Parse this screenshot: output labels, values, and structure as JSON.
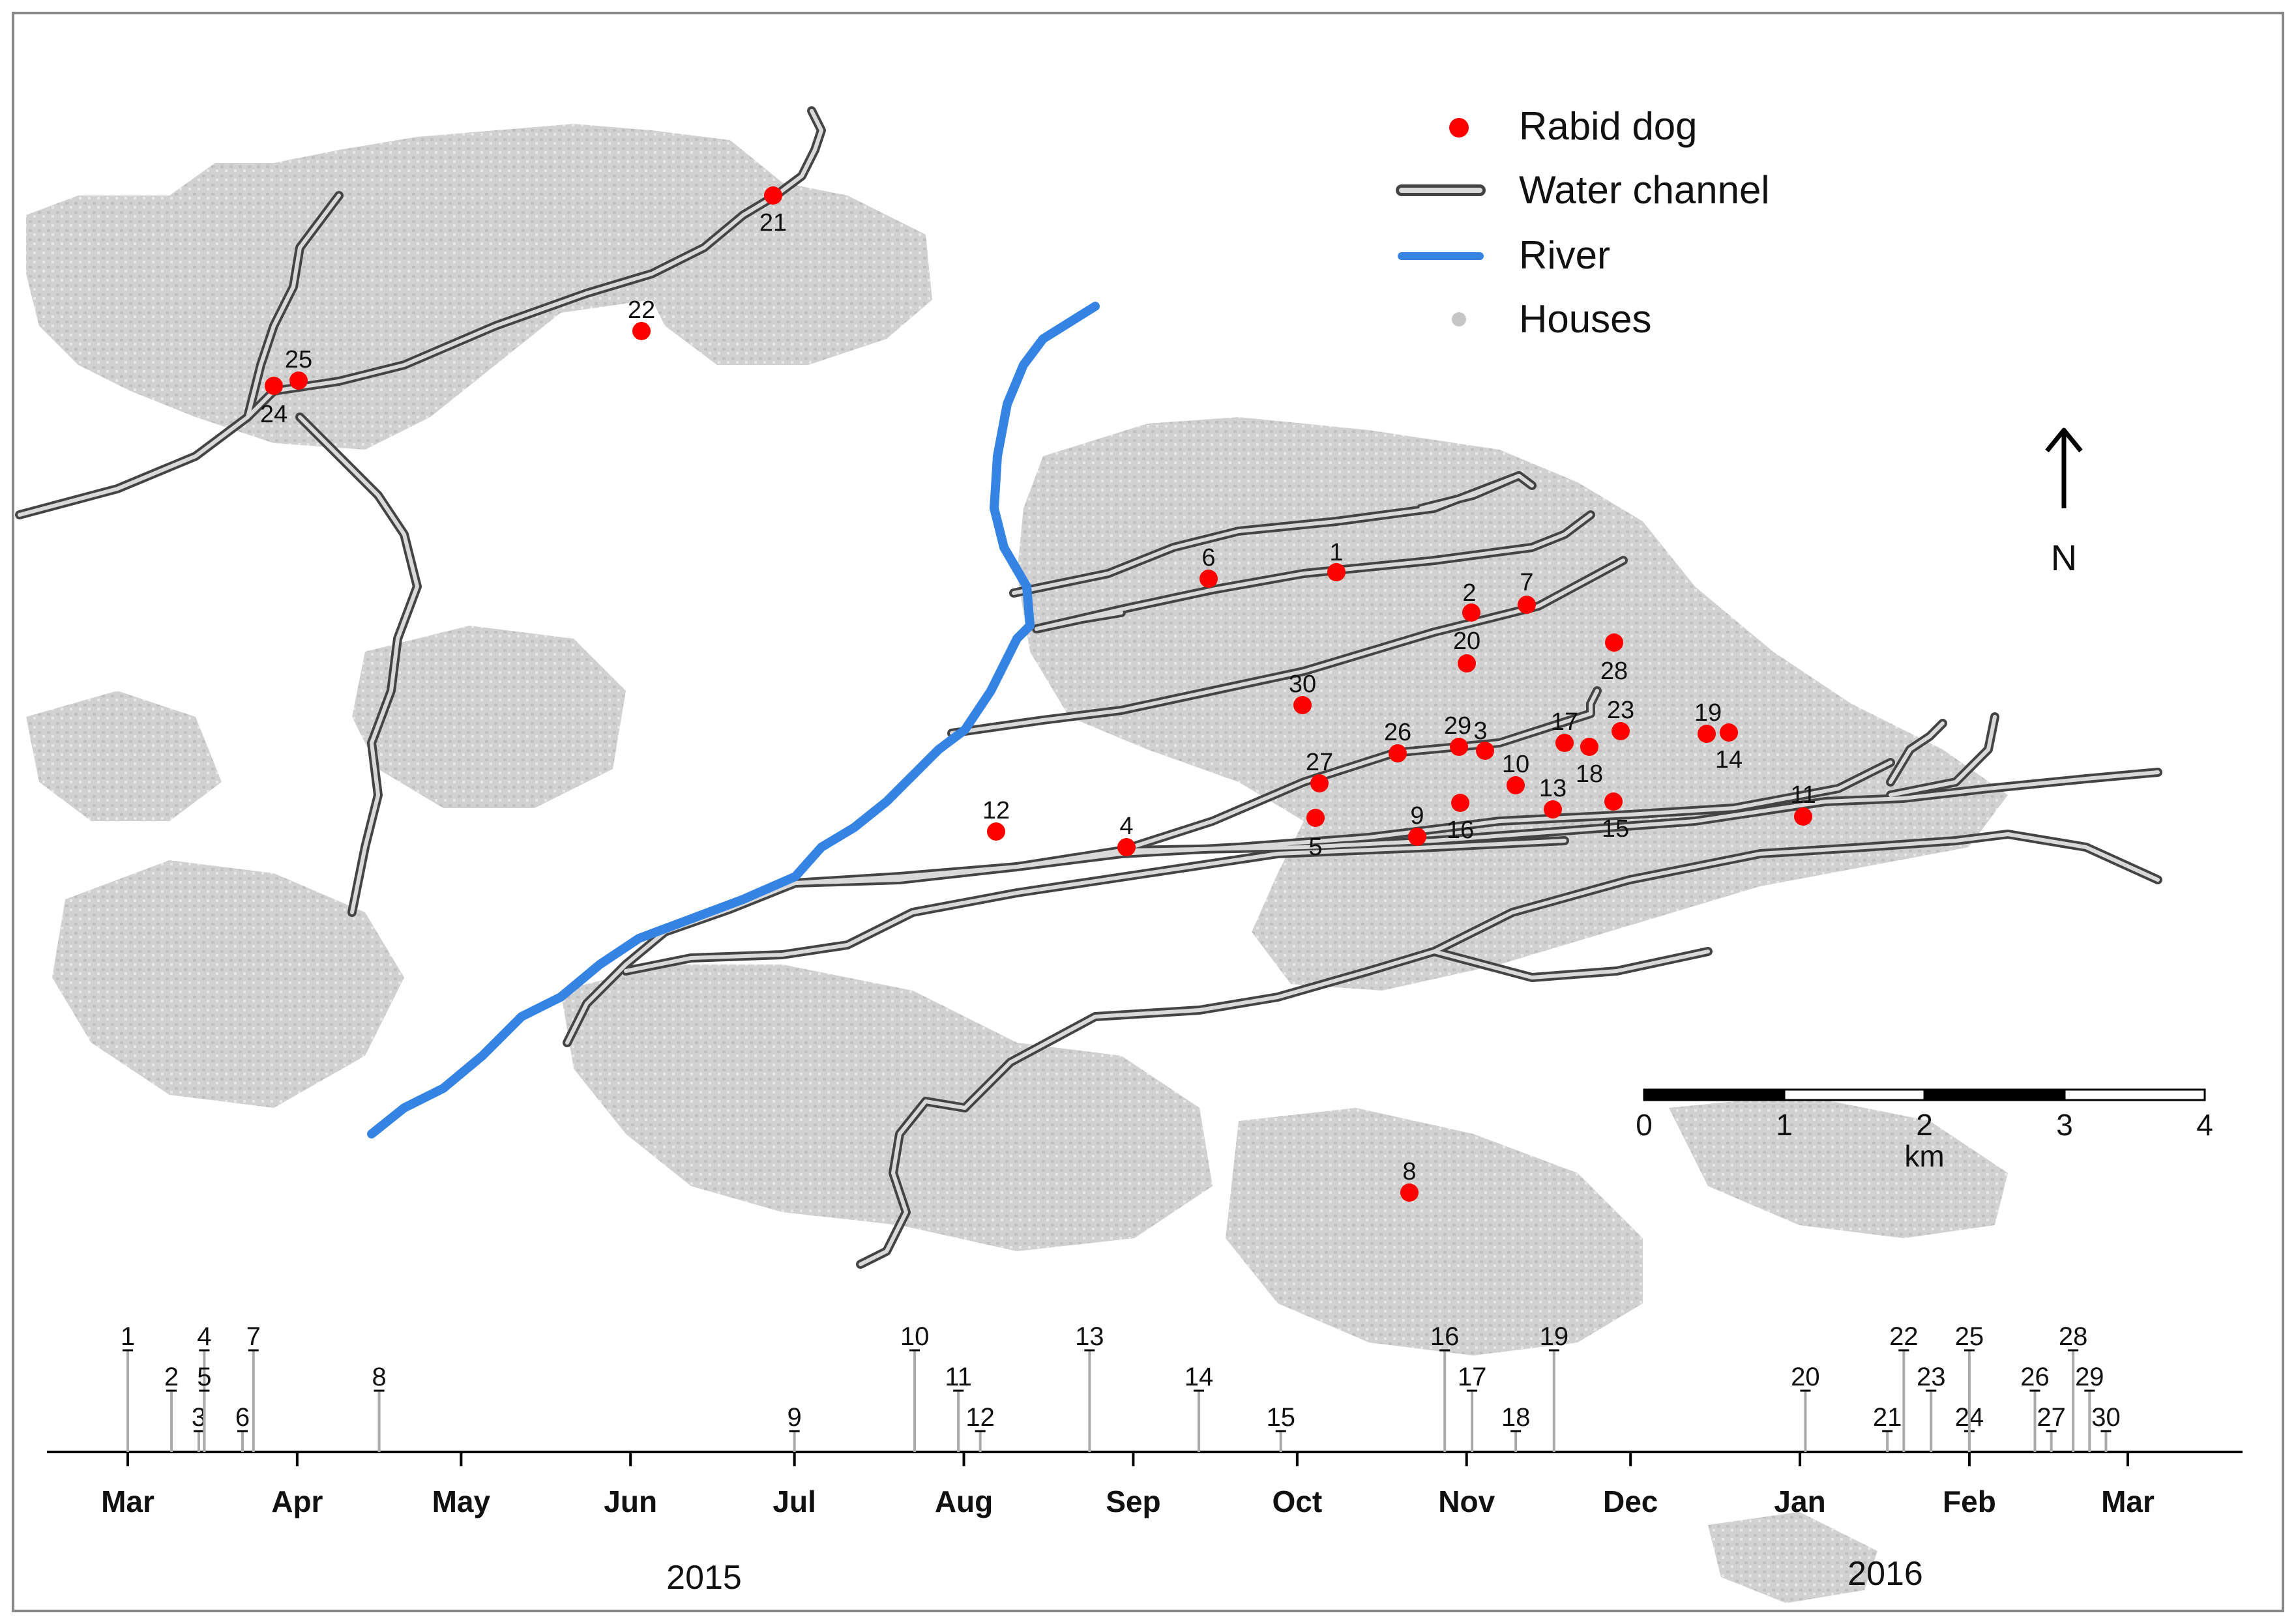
{
  "legend": {
    "rabid_dog": "Rabid dog",
    "water_channel": "Water channel",
    "river": "River",
    "houses": "Houses"
  },
  "north_label": "N",
  "scale_bar": {
    "ticks": [
      "0",
      "1",
      "2",
      "3",
      "4"
    ],
    "unit": "km"
  },
  "colors": {
    "dog": "#ff0000",
    "river": "#3584e4",
    "channel_outer": "#444444",
    "channel_inner": "#c8c8c8",
    "houses": "#c6c6c6"
  },
  "dogs": [
    {
      "id": "1",
      "label": "1"
    },
    {
      "id": "2",
      "label": "2"
    },
    {
      "id": "3",
      "label": "3"
    },
    {
      "id": "4",
      "label": "4"
    },
    {
      "id": "5",
      "label": "5"
    },
    {
      "id": "6",
      "label": "6"
    },
    {
      "id": "7",
      "label": "7"
    },
    {
      "id": "8",
      "label": "8"
    },
    {
      "id": "9",
      "label": "9"
    },
    {
      "id": "10",
      "label": "10"
    },
    {
      "id": "11",
      "label": "11"
    },
    {
      "id": "12",
      "label": "12"
    },
    {
      "id": "13",
      "label": "13"
    },
    {
      "id": "14",
      "label": "14"
    },
    {
      "id": "15",
      "label": "15"
    },
    {
      "id": "16",
      "label": "16"
    },
    {
      "id": "17",
      "label": "17"
    },
    {
      "id": "18",
      "label": "18"
    },
    {
      "id": "19",
      "label": "19"
    },
    {
      "id": "20",
      "label": "20"
    },
    {
      "id": "21",
      "label": "21"
    },
    {
      "id": "22",
      "label": "22"
    },
    {
      "id": "23",
      "label": "23"
    },
    {
      "id": "24",
      "label": "24"
    },
    {
      "id": "25",
      "label": "25"
    },
    {
      "id": "26",
      "label": "26"
    },
    {
      "id": "27",
      "label": "27"
    },
    {
      "id": "28",
      "label": "28"
    },
    {
      "id": "29",
      "label": "29"
    },
    {
      "id": "30",
      "label": "30"
    }
  ],
  "timeline": {
    "months": [
      "Mar",
      "Apr",
      "May",
      "Jun",
      "Jul",
      "Aug",
      "Sep",
      "Oct",
      "Nov",
      "Dec",
      "Jan",
      "Feb",
      "Mar"
    ],
    "years": [
      "2015",
      "2016"
    ],
    "events": [
      {
        "label": "1",
        "date": "2015-03-01"
      },
      {
        "label": "2",
        "date": "2015-03-09"
      },
      {
        "label": "3",
        "date": "2015-03-14"
      },
      {
        "label": "4",
        "date": "2015-03-15"
      },
      {
        "label": "5",
        "date": "2015-03-15"
      },
      {
        "label": "6",
        "date": "2015-03-22"
      },
      {
        "label": "7",
        "date": "2015-03-24"
      },
      {
        "label": "8",
        "date": "2015-04-16"
      },
      {
        "label": "9",
        "date": "2015-07-01"
      },
      {
        "label": "10",
        "date": "2015-07-23"
      },
      {
        "label": "11",
        "date": "2015-07-31"
      },
      {
        "label": "12",
        "date": "2015-08-04"
      },
      {
        "label": "13",
        "date": "2015-08-24"
      },
      {
        "label": "14",
        "date": "2015-09-13"
      },
      {
        "label": "15",
        "date": "2015-09-28"
      },
      {
        "label": "16",
        "date": "2015-10-28"
      },
      {
        "label": "17",
        "date": "2015-11-02"
      },
      {
        "label": "18",
        "date": "2015-11-10"
      },
      {
        "label": "19",
        "date": "2015-11-17"
      },
      {
        "label": "20",
        "date": "2016-01-02"
      },
      {
        "label": "21",
        "date": "2016-01-17"
      },
      {
        "label": "22",
        "date": "2016-01-20"
      },
      {
        "label": "23",
        "date": "2016-01-25"
      },
      {
        "label": "24",
        "date": "2016-02-01"
      },
      {
        "label": "25",
        "date": "2016-02-01"
      },
      {
        "label": "26",
        "date": "2016-02-13"
      },
      {
        "label": "27",
        "date": "2016-02-16"
      },
      {
        "label": "28",
        "date": "2016-02-20"
      },
      {
        "label": "29",
        "date": "2016-02-23"
      },
      {
        "label": "30",
        "date": "2016-02-26"
      }
    ]
  }
}
